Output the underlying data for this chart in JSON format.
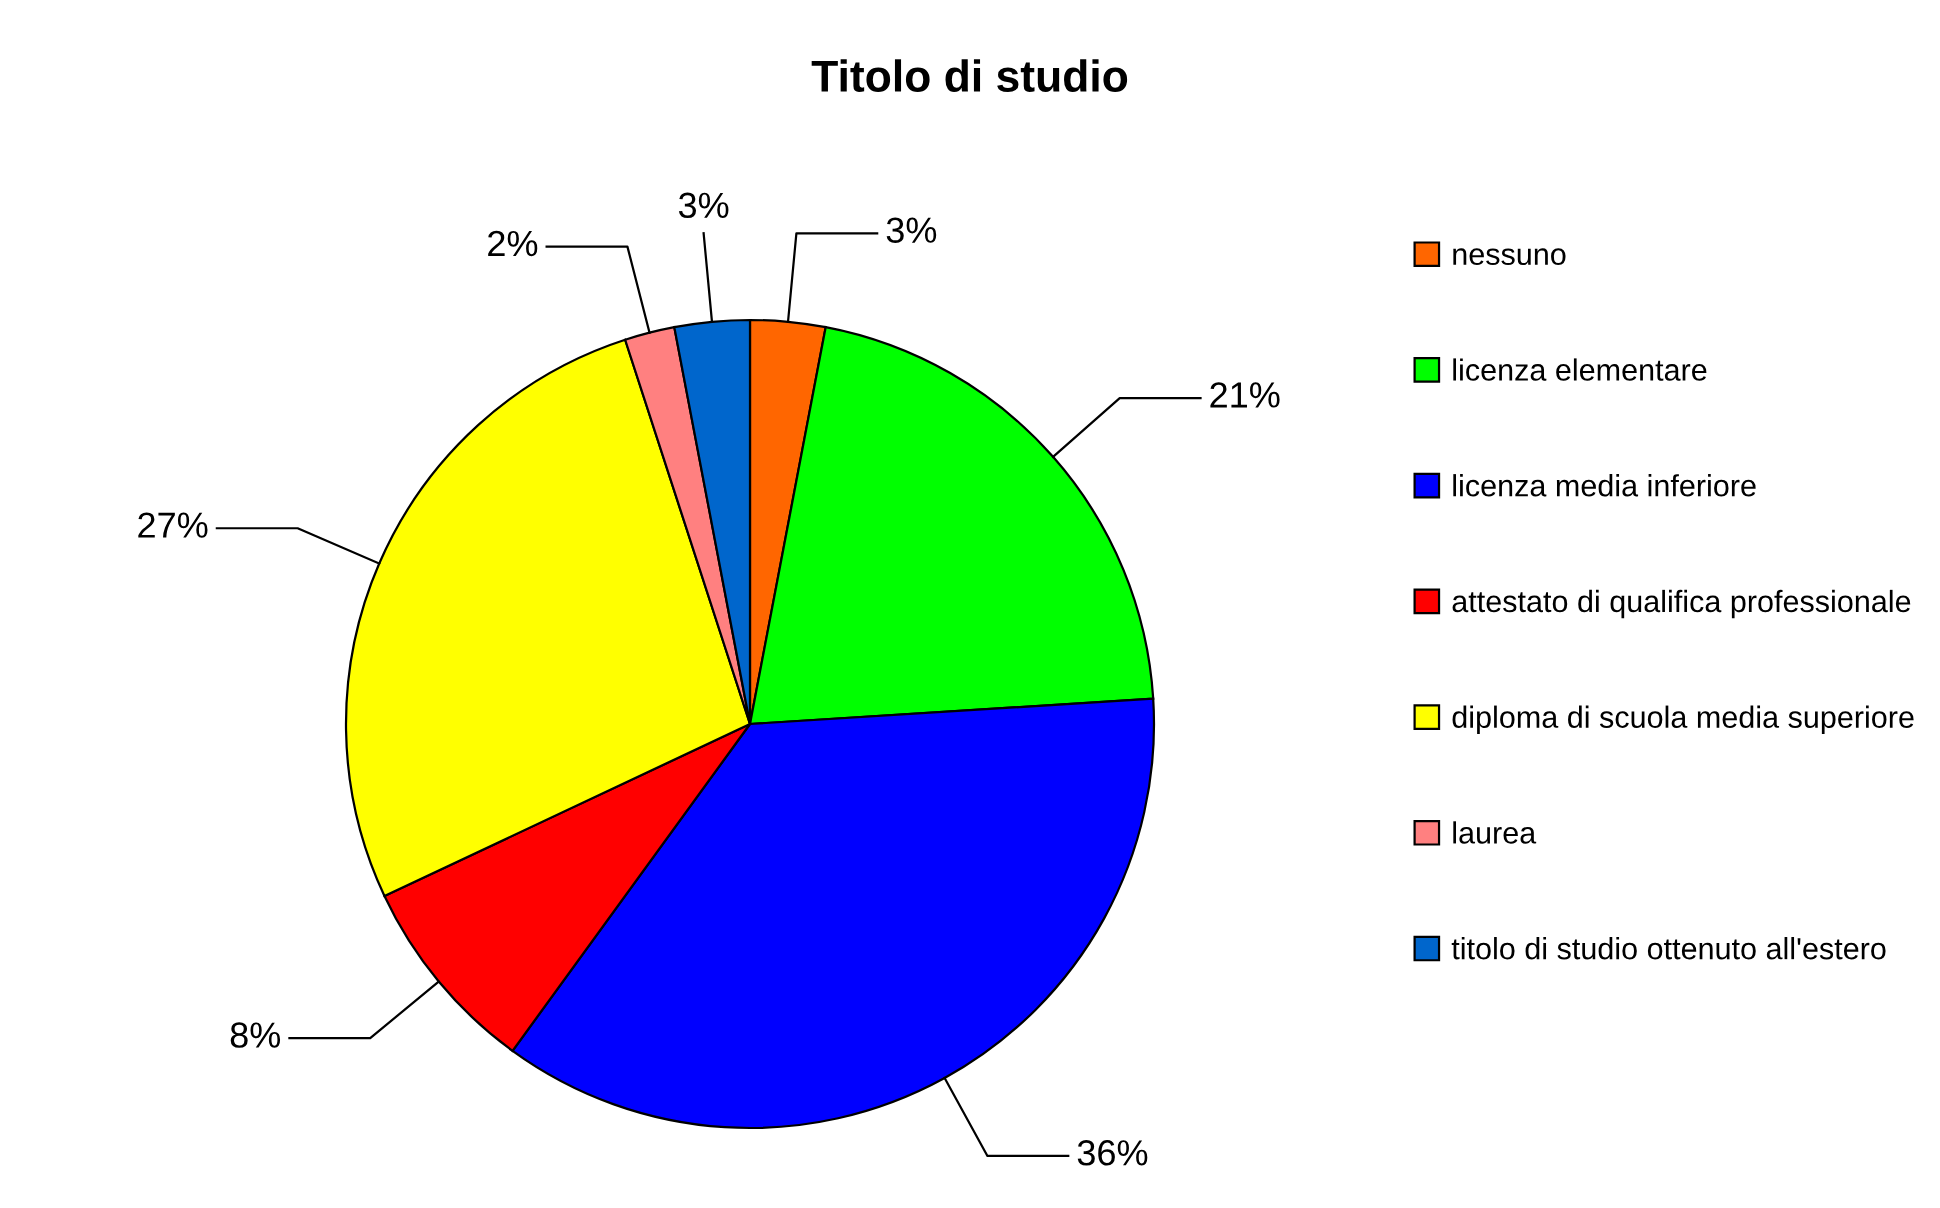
{
  "chart_data": {
    "type": "pie",
    "title": "Titolo di studio",
    "categories": [
      "nessuno",
      "licenza elementare",
      "licenza media inferiore",
      "attestato di qualifica professionale",
      "diploma di scuola media superiore",
      "laurea",
      "titolo di studio ottenuto all'estero"
    ],
    "values": [
      3,
      21,
      36,
      8,
      27,
      2,
      3
    ],
    "colors": [
      "#ff6600",
      "#00ff00",
      "#0000ff",
      "#ff0000",
      "#ffff00",
      "#ff8080",
      "#0066cc"
    ],
    "value_labels": [
      "3%",
      "21%",
      "36%",
      "8%",
      "27%",
      "2%",
      "3%"
    ],
    "legend": "right"
  }
}
